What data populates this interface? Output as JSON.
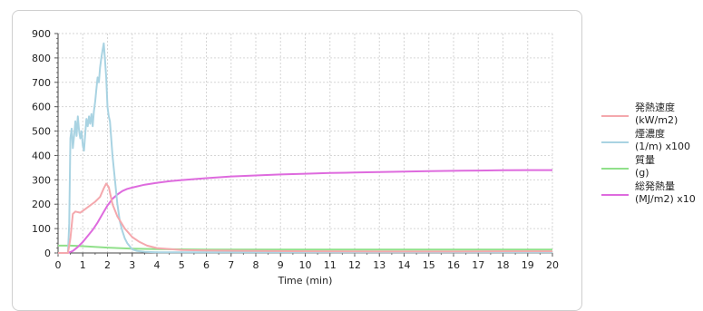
{
  "chart_data": {
    "type": "line",
    "xlabel": "Time (min)",
    "ylabel": "",
    "xlim": [
      0,
      20
    ],
    "ylim": [
      0,
      900
    ],
    "x_ticks": [
      0,
      1,
      2,
      3,
      4,
      5,
      6,
      7,
      8,
      9,
      10,
      11,
      12,
      13,
      14,
      15,
      16,
      17,
      18,
      19,
      20
    ],
    "y_ticks": [
      0,
      100,
      200,
      300,
      400,
      500,
      600,
      700,
      800,
      900
    ],
    "grid": true,
    "legend_position": "right",
    "series": [
      {
        "name": "発熱速度",
        "unit": "(kW/m2)",
        "color": "#f4a8ad",
        "points": [
          [
            0,
            0
          ],
          [
            0.4,
            0
          ],
          [
            0.5,
            60
          ],
          [
            0.6,
            160
          ],
          [
            0.7,
            170
          ],
          [
            0.9,
            165
          ],
          [
            1.1,
            180
          ],
          [
            1.3,
            195
          ],
          [
            1.5,
            210
          ],
          [
            1.7,
            230
          ],
          [
            1.85,
            265
          ],
          [
            1.95,
            285
          ],
          [
            2.05,
            270
          ],
          [
            2.2,
            200
          ],
          [
            2.4,
            150
          ],
          [
            2.7,
            100
          ],
          [
            3.0,
            65
          ],
          [
            3.3,
            45
          ],
          [
            3.6,
            30
          ],
          [
            4.0,
            20
          ],
          [
            5.0,
            12
          ],
          [
            6.0,
            10
          ],
          [
            8.0,
            8
          ],
          [
            10,
            7
          ],
          [
            13,
            6
          ],
          [
            16,
            6
          ],
          [
            18,
            7
          ],
          [
            20,
            7
          ]
        ]
      },
      {
        "name": "煙濃度",
        "unit": "(1/m) x100",
        "color": "#a9d3e2",
        "points": [
          [
            0,
            0
          ],
          [
            0.4,
            0
          ],
          [
            0.45,
            120
          ],
          [
            0.5,
            470
          ],
          [
            0.55,
            510
          ],
          [
            0.6,
            430
          ],
          [
            0.65,
            480
          ],
          [
            0.7,
            540
          ],
          [
            0.75,
            480
          ],
          [
            0.8,
            560
          ],
          [
            0.85,
            500
          ],
          [
            0.9,
            470
          ],
          [
            0.95,
            500
          ],
          [
            1.0,
            440
          ],
          [
            1.05,
            420
          ],
          [
            1.1,
            490
          ],
          [
            1.15,
            550
          ],
          [
            1.2,
            520
          ],
          [
            1.25,
            560
          ],
          [
            1.3,
            530
          ],
          [
            1.35,
            570
          ],
          [
            1.4,
            520
          ],
          [
            1.45,
            580
          ],
          [
            1.5,
            620
          ],
          [
            1.55,
            670
          ],
          [
            1.6,
            720
          ],
          [
            1.65,
            700
          ],
          [
            1.7,
            760
          ],
          [
            1.75,
            800
          ],
          [
            1.8,
            830
          ],
          [
            1.85,
            860
          ],
          [
            1.9,
            790
          ],
          [
            1.95,
            720
          ],
          [
            2.0,
            600
          ],
          [
            2.05,
            560
          ],
          [
            2.1,
            540
          ],
          [
            2.15,
            470
          ],
          [
            2.2,
            400
          ],
          [
            2.3,
            300
          ],
          [
            2.4,
            200
          ],
          [
            2.5,
            130
          ],
          [
            2.6,
            90
          ],
          [
            2.7,
            60
          ],
          [
            2.8,
            40
          ],
          [
            3.0,
            15
          ],
          [
            3.2,
            8
          ],
          [
            3.5,
            5
          ],
          [
            4.0,
            3
          ],
          [
            20,
            3
          ]
        ]
      },
      {
        "name": "質量",
        "unit": "(g)",
        "color": "#90e08a",
        "points": [
          [
            0,
            30
          ],
          [
            0.5,
            30
          ],
          [
            1,
            28
          ],
          [
            2,
            22
          ],
          [
            3,
            18
          ],
          [
            4,
            16
          ],
          [
            5,
            15
          ],
          [
            6,
            14
          ],
          [
            8,
            14
          ],
          [
            10,
            14
          ],
          [
            13,
            14
          ],
          [
            16,
            14
          ],
          [
            18,
            14
          ],
          [
            20,
            14
          ]
        ]
      },
      {
        "name": "総発熱量",
        "unit": "(MJ/m2) x10",
        "color": "#de6bde",
        "points": [
          [
            0,
            0
          ],
          [
            0.4,
            0
          ],
          [
            0.6,
            8
          ],
          [
            0.8,
            25
          ],
          [
            1.0,
            45
          ],
          [
            1.2,
            70
          ],
          [
            1.4,
            95
          ],
          [
            1.6,
            125
          ],
          [
            1.8,
            160
          ],
          [
            2.0,
            195
          ],
          [
            2.2,
            222
          ],
          [
            2.4,
            240
          ],
          [
            2.6,
            254
          ],
          [
            2.8,
            263
          ],
          [
            3.0,
            268
          ],
          [
            3.5,
            280
          ],
          [
            4.0,
            288
          ],
          [
            4.5,
            294
          ],
          [
            5,
            299
          ],
          [
            6,
            307
          ],
          [
            7,
            314
          ],
          [
            8,
            318
          ],
          [
            9,
            322
          ],
          [
            10,
            325
          ],
          [
            11,
            328
          ],
          [
            12,
            330
          ],
          [
            13,
            332
          ],
          [
            14,
            334
          ],
          [
            15,
            336
          ],
          [
            16,
            337
          ],
          [
            17,
            338
          ],
          [
            18,
            339
          ],
          [
            19,
            340
          ],
          [
            20,
            340
          ]
        ]
      }
    ]
  }
}
